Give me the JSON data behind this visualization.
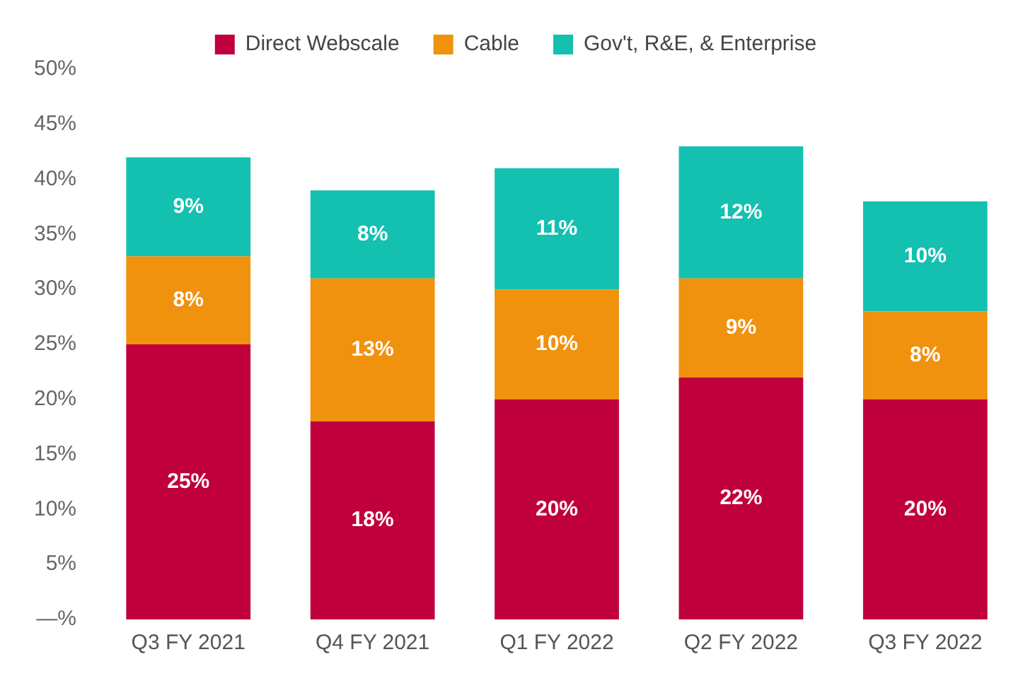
{
  "chart_data": {
    "type": "bar",
    "stacked": true,
    "categories": [
      "Q3 FY 2021",
      "Q4 FY 2021",
      "Q1 FY 2022",
      "Q2 FY 2022",
      "Q3 FY 2022"
    ],
    "series": [
      {
        "name": "Direct Webscale",
        "color": "#c0003c",
        "values": [
          25,
          18,
          20,
          22,
          20
        ],
        "value_labels": [
          "25%",
          "18%",
          "20%",
          "22%",
          "20%"
        ]
      },
      {
        "name": "Cable",
        "color": "#f0920e",
        "values": [
          8,
          13,
          10,
          9,
          8
        ],
        "value_labels": [
          "8%",
          "13%",
          "10%",
          "9%",
          "8%"
        ]
      },
      {
        "name": "Gov't, R&E, & Enterprise",
        "color": "#14c0b0",
        "values": [
          9,
          8,
          11,
          12,
          10
        ],
        "value_labels": [
          "9%",
          "8%",
          "11%",
          "12%",
          "10%"
        ]
      }
    ],
    "ylim": [
      0,
      50
    ],
    "yticks": [
      {
        "value": 0,
        "label": "—%"
      },
      {
        "value": 5,
        "label": "5%"
      },
      {
        "value": 10,
        "label": "10%"
      },
      {
        "value": 15,
        "label": "15%"
      },
      {
        "value": 20,
        "label": "20%"
      },
      {
        "value": 25,
        "label": "25%"
      },
      {
        "value": 30,
        "label": "30%"
      },
      {
        "value": 35,
        "label": "35%"
      },
      {
        "value": 40,
        "label": "40%"
      },
      {
        "value": 45,
        "label": "45%"
      },
      {
        "value": 50,
        "label": "50%"
      }
    ],
    "grid": false,
    "legend": "top"
  }
}
